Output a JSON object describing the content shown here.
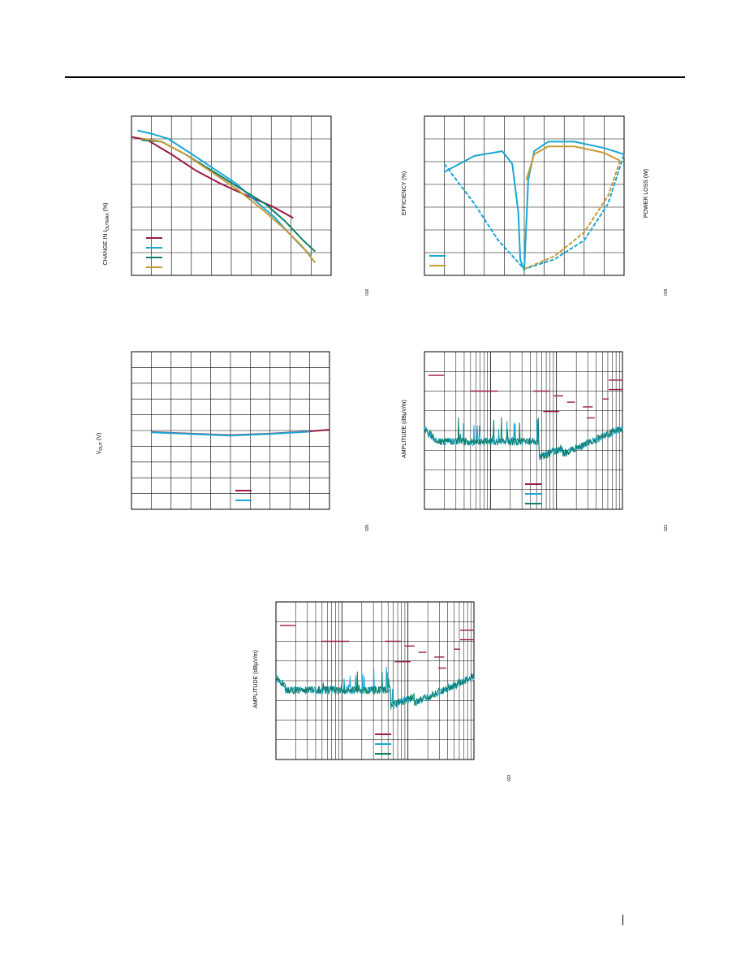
{
  "page": {
    "colors": {
      "maroon": "#9b1b45",
      "cyan": "#1aa7d4",
      "teal": "#0f7f6a",
      "gold": "#c99a34"
    }
  },
  "chart_data": [
    {
      "id": "fig1",
      "type": "line",
      "ylabel_main": "CHANGE IN I",
      "ylabel_sub": "OUTMAX",
      "ylabel_tail": " (%)",
      "figno": "016",
      "grid": true,
      "series": [
        {
          "color": "#9b1b45",
          "points": [
            [
              0,
              0.13
            ],
            [
              0.08,
              0.15
            ],
            [
              0.2,
              0.24
            ],
            [
              0.32,
              0.34
            ],
            [
              0.44,
              0.42
            ],
            [
              0.58,
              0.5
            ],
            [
              0.71,
              0.57
            ],
            [
              0.81,
              0.64
            ]
          ]
        },
        {
          "color": "#1aa7d4",
          "points": [
            [
              0.03,
              0.09
            ],
            [
              0.1,
              0.11
            ],
            [
              0.18,
              0.14
            ],
            [
              0.28,
              0.22
            ],
            [
              0.4,
              0.32
            ],
            [
              0.52,
              0.42
            ],
            [
              0.62,
              0.53
            ],
            [
              0.72,
              0.64
            ],
            [
              0.8,
              0.75
            ],
            [
              0.9,
              0.88
            ]
          ]
        },
        {
          "color": "#0f7f6a",
          "points": [
            [
              0.05,
              0.15
            ],
            [
              0.15,
              0.16
            ],
            [
              0.27,
              0.24
            ],
            [
              0.4,
              0.34
            ],
            [
              0.54,
              0.45
            ],
            [
              0.67,
              0.55
            ],
            [
              0.77,
              0.66
            ],
            [
              0.86,
              0.78
            ],
            [
              0.92,
              0.85
            ]
          ]
        },
        {
          "color": "#c99a34",
          "points": [
            [
              0.05,
              0.14
            ],
            [
              0.15,
              0.16
            ],
            [
              0.27,
              0.24
            ],
            [
              0.4,
              0.35
            ],
            [
              0.53,
              0.46
            ],
            [
              0.65,
              0.58
            ],
            [
              0.76,
              0.7
            ],
            [
              0.85,
              0.81
            ],
            [
              0.92,
              0.92
            ]
          ]
        }
      ]
    },
    {
      "id": "fig2",
      "type": "line",
      "ylabel_main": "EFFICIENCY (%)",
      "ylabel_right": "POWER LOSS (W)",
      "figno": "019",
      "grid": true,
      "series": [
        {
          "color": "#1aa7d4",
          "points": [
            [
              0.1,
              0.35
            ],
            [
              0.25,
              0.25
            ],
            [
              0.39,
              0.22
            ],
            [
              0.44,
              0.3
            ],
            [
              0.47,
              0.6
            ],
            [
              0.48,
              0.9
            ],
            [
              0.5,
              0.97
            ],
            [
              0.52,
              0.4
            ],
            [
              0.55,
              0.22
            ],
            [
              0.62,
              0.16
            ],
            [
              0.75,
              0.16
            ],
            [
              0.9,
              0.2
            ],
            [
              1.0,
              0.24
            ]
          ]
        },
        {
          "color": "#c99a34",
          "points": [
            [
              0.51,
              0.4
            ],
            [
              0.55,
              0.24
            ],
            [
              0.62,
              0.19
            ],
            [
              0.75,
              0.19
            ],
            [
              0.9,
              0.23
            ],
            [
              0.98,
              0.28
            ]
          ]
        },
        {
          "color": "#1aa7d4",
          "dashed": true,
          "points": [
            [
              0.1,
              0.3
            ],
            [
              0.25,
              0.55
            ],
            [
              0.37,
              0.78
            ],
            [
              0.5,
              0.96
            ],
            [
              0.65,
              0.9
            ],
            [
              0.8,
              0.78
            ],
            [
              0.92,
              0.55
            ],
            [
              1.0,
              0.24
            ]
          ]
        },
        {
          "color": "#c99a34",
          "dashed": true,
          "points": [
            [
              0.5,
              0.96
            ],
            [
              0.65,
              0.88
            ],
            [
              0.8,
              0.73
            ],
            [
              0.92,
              0.5
            ],
            [
              0.98,
              0.28
            ]
          ]
        }
      ]
    },
    {
      "id": "fig3",
      "type": "line",
      "ylabel_main": "V",
      "ylabel_sub": "OUT",
      "ylabel_tail": " (V)",
      "figno": "020",
      "grid": true,
      "series": [
        {
          "color": "#9b1b45",
          "points": [
            [
              0.1,
              0.51
            ],
            [
              0.3,
              0.52
            ],
            [
              0.5,
              0.53
            ],
            [
              0.7,
              0.52
            ],
            [
              0.9,
              0.505
            ],
            [
              1.0,
              0.495
            ]
          ]
        },
        {
          "color": "#1aa7d4",
          "points": [
            [
              0.1,
              0.512
            ],
            [
              0.3,
              0.522
            ],
            [
              0.5,
              0.532
            ],
            [
              0.7,
              0.522
            ],
            [
              0.9,
              0.507
            ]
          ]
        }
      ]
    },
    {
      "id": "fig4",
      "type": "line",
      "ylabel_main": "AMPLITUDE (dBµV/m)",
      "figno": "021",
      "grid": true,
      "series": [
        {
          "color": "#1aa7d4",
          "role": "noise",
          "seed": 7
        },
        {
          "color": "#0f7f6a",
          "role": "noise",
          "seed": 19
        }
      ]
    },
    {
      "id": "fig5",
      "type": "line",
      "ylabel_main": "AMPLITUDE (dBµV/m)",
      "figno": "022",
      "grid": true,
      "series": [
        {
          "color": "#1aa7d4",
          "role": "noise",
          "seed": 31
        },
        {
          "color": "#0f7f6a",
          "role": "noise",
          "seed": 43
        }
      ]
    }
  ]
}
